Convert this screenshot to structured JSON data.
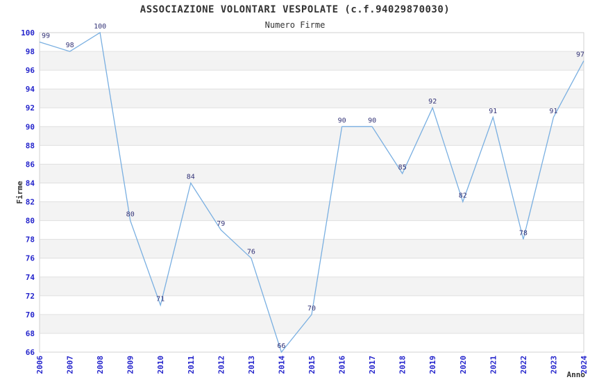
{
  "title": "ASSOCIAZIONE VOLONTARI VESPOLATE (c.f.94029870030)",
  "subtitle": "Numero Firme",
  "chart_data": {
    "type": "line",
    "title": "ASSOCIAZIONE VOLONTARI VESPOLATE (c.f.94029870030)",
    "subtitle": "Numero Firme",
    "x": [
      "2006",
      "2007",
      "2008",
      "2009",
      "2010",
      "2011",
      "2012",
      "2013",
      "2014",
      "2015",
      "2016",
      "2017",
      "2018",
      "2019",
      "2020",
      "2021",
      "2022",
      "2023",
      "2024"
    ],
    "values": [
      99,
      98,
      100,
      80,
      71,
      84,
      79,
      76,
      66,
      70,
      90,
      90,
      85,
      92,
      82,
      91,
      78,
      91,
      97
    ],
    "xlabel": "Anno",
    "ylabel": "Firme",
    "ylim": [
      66,
      100
    ],
    "ytick_step": 2,
    "grid": true,
    "legend_position": "none",
    "point_labels_visible": true,
    "colors": {
      "line": "#79afe1",
      "tick_label": "#2424cc",
      "point_label": "#333377",
      "axis_title": "#333333",
      "band_alt": "#f3f3f3",
      "band_main": "#ffffff",
      "gridline": "#e0e0e0",
      "border": "#d2d2d2",
      "title_text": "#333333",
      "background": "#ffffff"
    }
  }
}
